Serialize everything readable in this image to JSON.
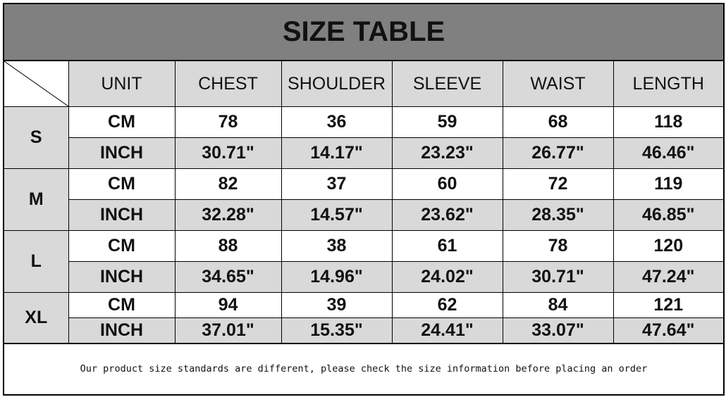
{
  "title": "SIZE TABLE",
  "headers": [
    "UNIT",
    "CHEST",
    "SHOULDER",
    "SLEEVE",
    "WAIST",
    "LENGTH"
  ],
  "rows": [
    {
      "size": "S",
      "cm": {
        "unit": "CM",
        "values": [
          "78",
          "36",
          "59",
          "68",
          "118"
        ]
      },
      "inch": {
        "unit": "INCH",
        "values": [
          "30.71\"",
          "14.17\"",
          "23.23\"",
          "26.77\"",
          "46.46\""
        ]
      }
    },
    {
      "size": "M",
      "cm": {
        "unit": "CM",
        "values": [
          "82",
          "37",
          "60",
          "72",
          "119"
        ]
      },
      "inch": {
        "unit": "INCH",
        "values": [
          "32.28\"",
          "14.57\"",
          "23.62\"",
          "28.35\"",
          "46.85\""
        ]
      }
    },
    {
      "size": "L",
      "cm": {
        "unit": "CM",
        "values": [
          "88",
          "38",
          "61",
          "78",
          "120"
        ]
      },
      "inch": {
        "unit": "INCH",
        "values": [
          "34.65\"",
          "14.96\"",
          "24.02\"",
          "30.71\"",
          "47.24\""
        ]
      }
    },
    {
      "size": "XL",
      "cm": {
        "unit": "CM",
        "values": [
          "94",
          "39",
          "62",
          "84",
          "121"
        ]
      },
      "inch": {
        "unit": "INCH",
        "values": [
          "37.01\"",
          "15.35\"",
          "24.41\"",
          "33.07\"",
          "47.64\""
        ]
      }
    }
  ],
  "footer": "Our product size standards are different, please check the size information before placing an order",
  "colors": {
    "title_bg": "#808080",
    "cell_gray": "#d9d9d9"
  }
}
